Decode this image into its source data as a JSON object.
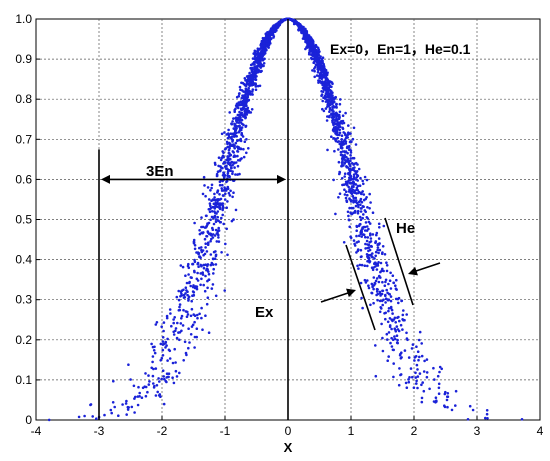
{
  "chart_data": {
    "type": "scatter",
    "title": "",
    "xlabel": "X",
    "ylabel": "",
    "xlim": [
      -4,
      4
    ],
    "ylim": [
      0,
      1
    ],
    "grid": true,
    "marker_color": "#1a22d8",
    "xticks": [
      "-4",
      "-3",
      "-2",
      "-1",
      "0",
      "1",
      "2",
      "3",
      "4"
    ],
    "yticks": [
      "0",
      "0.1",
      "0.2",
      "0.3",
      "0.4",
      "0.5",
      "0.6",
      "0.7",
      "0.8",
      "0.9",
      "1.0"
    ],
    "cloud_model": {
      "Ex": 0,
      "En": 1,
      "He": 0.1
    },
    "drop_count": 3000,
    "annotations": {
      "params_label": "Ex=0，En=1，He=0.1",
      "span_label": "3En",
      "center_label": "Ex",
      "he_label": "He"
    }
  }
}
